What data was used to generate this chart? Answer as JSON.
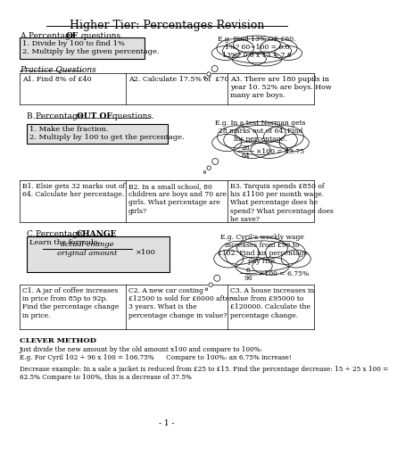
{
  "title": "Higher Tier: Percentages Revision",
  "bg_color": "#ffffff",
  "sections": {
    "A_cloud": "E.g. Find 13% OF £60.\n1%? 60÷100 = 0.6\n13%? 0.6 x 13 = 7.8",
    "A1": "A1. Find 8% of £40",
    "A2": "A2. Calculate 17.5% of  £70",
    "A3": "A3. There are 180 pupils in\nyear 10. 52% are boys. How\nmany are boys.",
    "B_fraction_num": "28",
    "B_fraction_den": "64",
    "B1": "B1. Elsie gets 32 marks out of\n64. Calculate her percentage.",
    "B2": "B2. In a small school, 80\nchildren are boys and 70 are\ngirls. What percentage are\ngirls?",
    "B3": "B3. Tarquin spends £850 of\nhis £1100 per month wage.\nWhat percentage does he\nspend? What percentage does\nhe save?",
    "C_box_num": "actual change",
    "C_box_den": "original amount",
    "C_box_mult": "×100",
    "C_fraction_num": "6",
    "C_fraction_den": "96",
    "C1": "C1. A jar of coffee increases\nin price from 85p to 92p.\nFind the percentage change\nin price.",
    "C2": "C2. A new car costing\n£12500 is sold for £6000 after\n3 years. What is the\npercentage change in value?",
    "C3": "C3. A house increases in\nvalue from £95000 to\n£120000. Calculate the\npercentage change."
  }
}
